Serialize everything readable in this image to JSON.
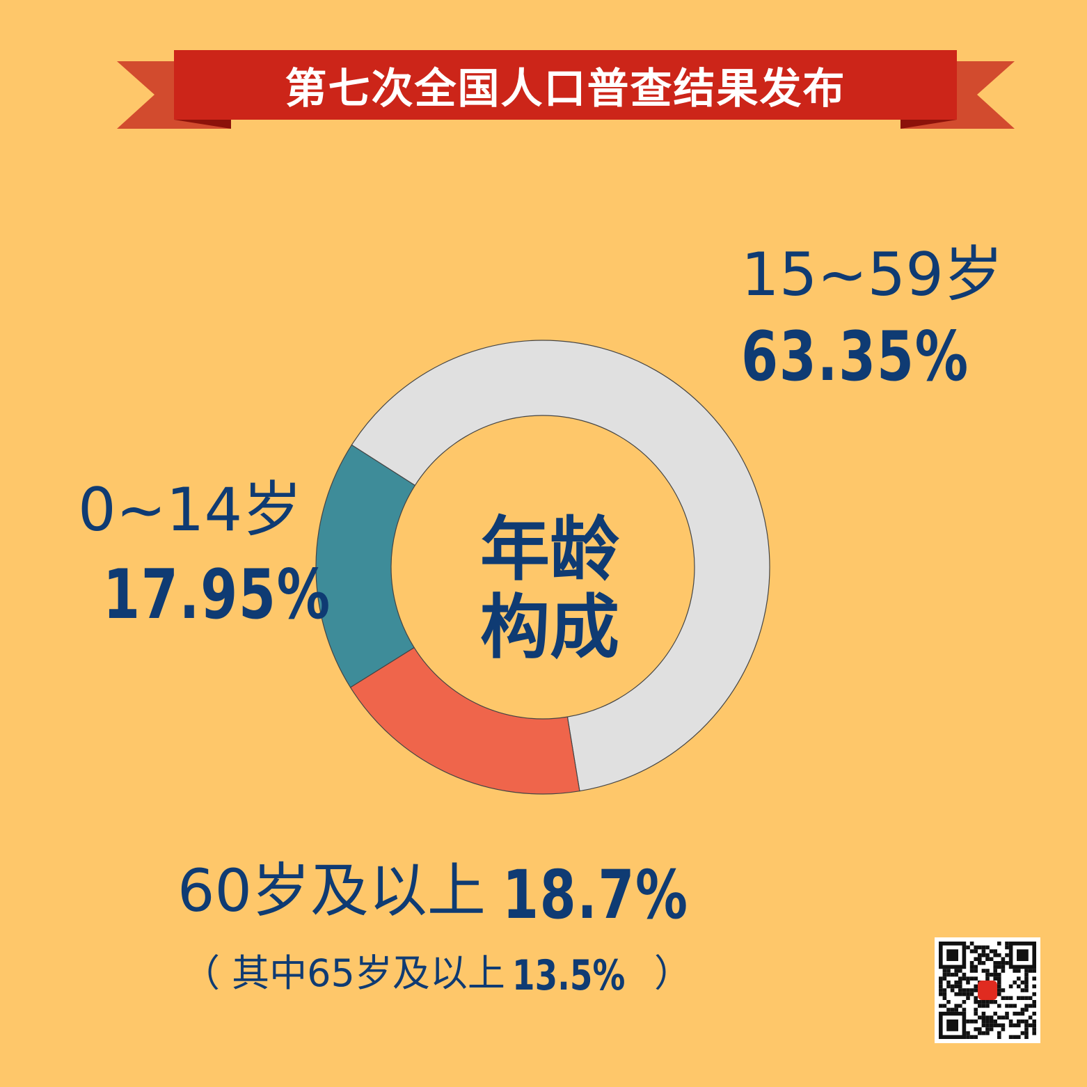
{
  "banner": {
    "title": "第七次全国人口普查结果发布"
  },
  "center": {
    "line1": "年龄",
    "line2": "构成"
  },
  "chart_data": {
    "type": "pie",
    "segments": [
      {
        "name": "15~59岁",
        "value": 63.35,
        "label": "63.35%",
        "color": "#E0E0E0"
      },
      {
        "name": "0~14岁",
        "value": 17.95,
        "label": "17.95%",
        "color": "#3E8C99"
      },
      {
        "name": "60岁及以上",
        "value": 18.7,
        "label": "18.7%",
        "color": "#EF654B"
      }
    ],
    "note": {
      "text": "（ 其中65岁及以上",
      "value": 13.5,
      "label": "13.5%",
      "close": "）"
    }
  },
  "colors": {
    "background": "#FEC76A",
    "banner_red": "#CC2519",
    "ribbon_tail": "#D24B2E",
    "ribbon_fold": "#8C120A",
    "text_blue": "#0F3B73"
  },
  "qr": {
    "icon": "qr-code-icon"
  }
}
